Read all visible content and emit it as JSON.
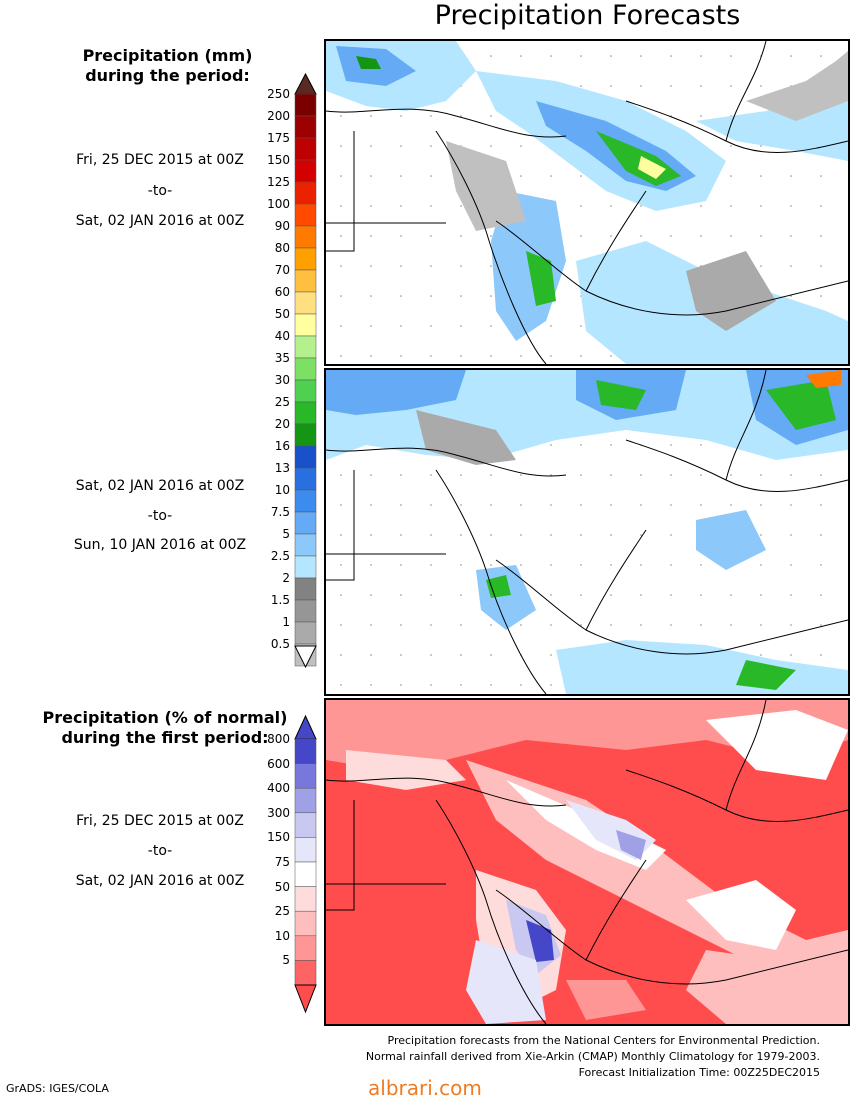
{
  "title": "Precipitation Forecasts",
  "precip_legend": {
    "heading_lines": [
      "Precipitation (mm)",
      "during the period:"
    ],
    "ticks": [
      "250",
      "200",
      "175",
      "150",
      "125",
      "100",
      "90",
      "80",
      "70",
      "60",
      "50",
      "40",
      "35",
      "30",
      "25",
      "20",
      "16",
      "13",
      "10",
      "7.5",
      "5",
      "2.5",
      "2",
      "1.5",
      "1",
      "0.5"
    ],
    "colors": [
      "#7a0000",
      "#9c0000",
      "#bd0000",
      "#d40000",
      "#ea2200",
      "#ff4a00",
      "#ff7a00",
      "#ff9f00",
      "#ffc040",
      "#ffe080",
      "#ffff9f",
      "#b4f08c",
      "#7ce064",
      "#50d050",
      "#28b828",
      "#149614",
      "#1a50c8",
      "#2870e0",
      "#3c8cf0",
      "#64aaf5",
      "#8cc8fa",
      "#b4e6ff",
      "#828282",
      "#969696",
      "#aaaaaa",
      "#c0c0c0"
    ]
  },
  "period1": {
    "start": "Fri, 25 DEC 2015 at 00Z",
    "to": "-to-",
    "end": "Sat, 02 JAN 2016 at 00Z"
  },
  "period2": {
    "start": "Sat, 02 JAN 2016 at 00Z",
    "to": "-to-",
    "end": "Sun, 10 JAN 2016 at 00Z"
  },
  "pct_legend": {
    "heading_lines": [
      "Precipitation (% of normal)",
      "during the first period:"
    ],
    "ticks": [
      "800",
      "600",
      "400",
      "300",
      "150",
      "75",
      "50",
      "25",
      "10",
      "5"
    ],
    "colors": [
      "#4646c8",
      "#7878dc",
      "#a0a0e6",
      "#c8c8f0",
      "#e6e6fa",
      "#ffffff",
      "#ffdcdc",
      "#ffbebe",
      "#ff9696",
      "#ff6464"
    ]
  },
  "period3": {
    "start": "Fri, 25 DEC 2015 at 00Z",
    "to": "-to-",
    "end": "Sat, 02 JAN 2016 at 00Z"
  },
  "footer": {
    "line1": "Precipitation forecasts from the National Centers for Environmental Prediction.",
    "line2": "Normal rainfall derived from Xie-Arkin (CMAP) Monthly Climatology for 1979-2003.",
    "line3": "Forecast Initialization Time: 00Z25DEC2015"
  },
  "credit": "GrADS: IGES/COLA",
  "watermark": "albrari.com"
}
